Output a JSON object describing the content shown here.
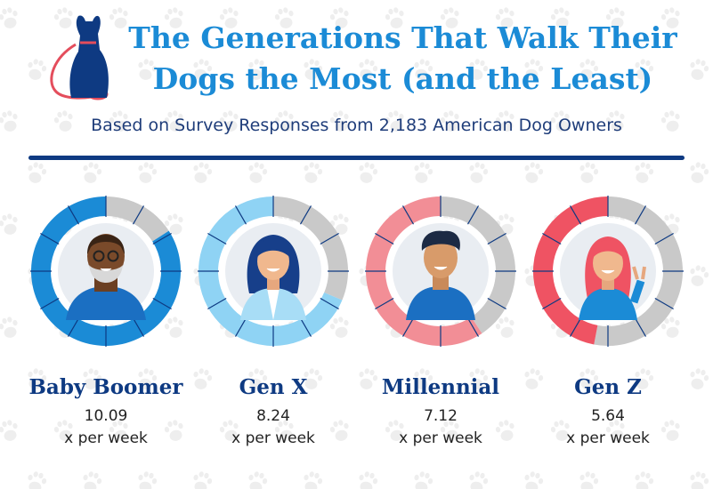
{
  "header": {
    "title_line1": "The Generations That Walk Their",
    "title_line2": "Dogs the Most (and the Least)",
    "subtitle": "Based on Survey Responses from 2,183 American Dog Owners"
  },
  "logo_icon": "dog-with-leash-icon",
  "colors": {
    "title": "#1b8bd6",
    "navy": "#0e3a82",
    "ring_gray": "#c9c9c9",
    "boomer_blue": "#1b8bd6",
    "genx_lightblue": "#8fd3f4",
    "millennial_pink": "#f28e96",
    "genz_red": "#ef5363"
  },
  "chart_data": {
    "type": "bar",
    "unit": "x per week",
    "max_segments": 12,
    "categories": [
      "Baby Boomer",
      "Gen X",
      "Millennial",
      "Gen Z"
    ],
    "values": [
      10.09,
      8.24,
      7.12,
      5.64
    ],
    "items": [
      {
        "label": "Baby Boomer",
        "value": "10.09",
        "unit": "x per week",
        "avatar": "older-man-avatar",
        "color": "#1b8bd6"
      },
      {
        "label": "Gen X",
        "value": "8.24",
        "unit": "x per week",
        "avatar": "woman-avatar",
        "color": "#8fd3f4"
      },
      {
        "label": "Millennial",
        "value": "7.12",
        "unit": "x per week",
        "avatar": "young-man-avatar",
        "color": "#f28e96"
      },
      {
        "label": "Gen Z",
        "value": "5.64",
        "unit": "x per week",
        "avatar": "girl-peace-sign-avatar",
        "color": "#ef5363"
      }
    ]
  }
}
